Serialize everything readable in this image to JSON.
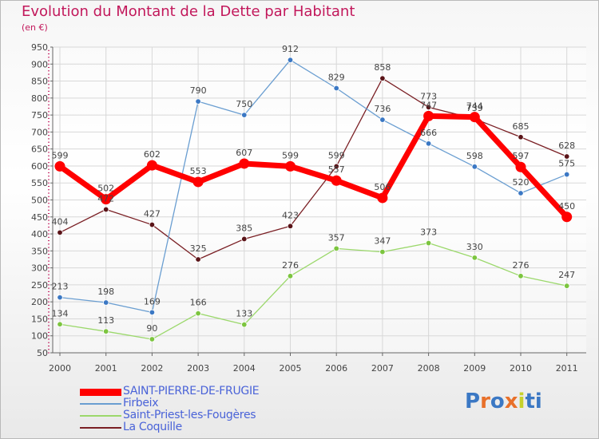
{
  "title": "Evolution du Montant de la Dette par Habitant",
  "subtitle": "(en €)",
  "logo": {
    "text": "Proxiti",
    "letter_colors": [
      "#3b78c4",
      "#e8702a",
      "#3b78c4",
      "#e8702a",
      "#c7d12c",
      "#3b78c4",
      "#3b78c4"
    ]
  },
  "legend": [
    {
      "label": "SAINT-PIERRE-DE-FRUGIE",
      "color": "#ff0000"
    },
    {
      "label": "Firbeix",
      "color": "#6a9ed1"
    },
    {
      "label": "Saint-Priest-les-Fougères",
      "color": "#9bd86b"
    },
    {
      "label": "La Coquille",
      "color": "#7a1f24"
    }
  ],
  "chart_data": {
    "type": "line",
    "x": [
      2000,
      2001,
      2002,
      2003,
      2004,
      2005,
      2006,
      2007,
      2008,
      2009,
      2010,
      2011
    ],
    "ylim": [
      50,
      950
    ],
    "yticks": [
      50,
      100,
      150,
      200,
      250,
      300,
      350,
      400,
      450,
      500,
      550,
      600,
      650,
      700,
      750,
      800,
      850,
      900,
      950
    ],
    "grid": true,
    "legend_position": "bottom-left",
    "series": [
      {
        "name": "SAINT-PIERRE-DE-FRUGIE",
        "color": "#ff0000",
        "marker": "#ff0000",
        "values": [
          599,
          502,
          602,
          553,
          607,
          599,
          557,
          506,
          747,
          744,
          597,
          450
        ],
        "labels": [
          "599",
          "502",
          "602",
          "553",
          "607",
          "599",
          "557",
          "506",
          "747",
          "744",
          "597",
          "450"
        ]
      },
      {
        "name": "Firbeix",
        "color": "#6a9ed1",
        "marker": "#3b78c4",
        "values": [
          213,
          198,
          169,
          790,
          750,
          912,
          829,
          736,
          666,
          598,
          520,
          575
        ],
        "labels": [
          "213",
          "198",
          "169",
          "790",
          "750",
          "912",
          "829",
          "736",
          "666",
          "598",
          "520",
          "575"
        ]
      },
      {
        "name": "Saint-Priest-les-Fougères",
        "color": "#9bd86b",
        "marker": "#7cc53f",
        "values": [
          134,
          113,
          90,
          166,
          133,
          276,
          357,
          347,
          373,
          330,
          276,
          247
        ],
        "labels": [
          "134",
          "113",
          "90",
          "166",
          "133",
          "276",
          "357",
          "347",
          "373",
          "330",
          "276",
          "247"
        ]
      },
      {
        "name": "La Coquille",
        "color": "#7a1f24",
        "marker": "#5a1418",
        "values": [
          404,
          472,
          427,
          325,
          385,
          423,
          599,
          858,
          773,
          739,
          685,
          628
        ],
        "labels": [
          "404",
          "472",
          "427",
          "325",
          "385",
          "423",
          "599",
          "858",
          "773",
          "739",
          "685",
          "628"
        ]
      }
    ]
  }
}
